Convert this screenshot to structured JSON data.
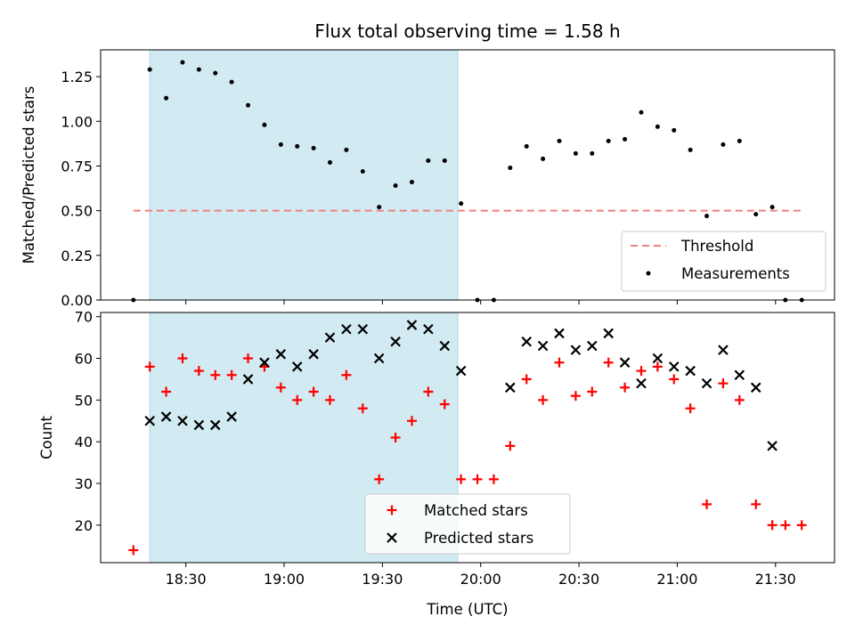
{
  "title": "Flux total observing time = 1.58 h",
  "colors": {
    "shade": "#add8e6",
    "threshold": "#f08080",
    "measurement": "#000000",
    "matched": "#ff0000",
    "predicted": "#000000"
  },
  "chart_data": [
    {
      "type": "scatter",
      "ylabel": "Matched/Predicted stars",
      "ylim": [
        0,
        1.4
      ],
      "yticks": [
        0.0,
        0.25,
        0.5,
        0.75,
        1.0,
        1.25
      ],
      "ytick_labels": [
        "0.00",
        "0.25",
        "0.50",
        "0.75",
        "1.00",
        "1.25"
      ],
      "shaded_span": [
        "18:19",
        "19:53"
      ],
      "threshold": {
        "name": "Threshold",
        "value": 0.5,
        "x": [
          "18:14",
          "21:38"
        ]
      },
      "series": [
        {
          "name": "Measurements",
          "x": [
            "18:14",
            "18:19",
            "18:24",
            "18:29",
            "18:34",
            "18:39",
            "18:44",
            "18:49",
            "18:54",
            "18:59",
            "19:04",
            "19:09",
            "19:14",
            "19:19",
            "19:24",
            "19:29",
            "19:34",
            "19:39",
            "19:44",
            "19:49",
            "19:54",
            "19:59",
            "20:04",
            "20:09",
            "20:14",
            "20:19",
            "20:24",
            "20:29",
            "20:34",
            "20:39",
            "20:44",
            "20:49",
            "20:54",
            "20:59",
            "21:04",
            "21:09",
            "21:14",
            "21:19",
            "21:24",
            "21:29",
            "21:33",
            "21:38"
          ],
          "y": [
            0.0,
            1.29,
            1.13,
            1.33,
            1.29,
            1.27,
            1.22,
            1.09,
            0.98,
            0.87,
            0.86,
            0.85,
            0.77,
            0.84,
            0.72,
            0.52,
            0.64,
            0.66,
            0.78,
            0.78,
            0.54,
            0.0,
            0.0,
            0.74,
            0.86,
            0.79,
            0.89,
            0.82,
            0.82,
            0.89,
            0.9,
            1.05,
            0.97,
            0.95,
            0.84,
            0.47,
            0.87,
            0.89,
            0.48,
            0.52,
            0.0,
            0.0
          ]
        }
      ],
      "legend_placement": "lower-right"
    },
    {
      "type": "scatter",
      "xlabel": "Time (UTC)",
      "ylabel": "Count",
      "ylim": [
        11,
        71
      ],
      "yticks": [
        20,
        30,
        40,
        50,
        60,
        70
      ],
      "xticks": [
        "18:30",
        "19:00",
        "19:30",
        "20:00",
        "20:30",
        "21:00",
        "21:30"
      ],
      "shaded_span": [
        "18:19",
        "19:53"
      ],
      "series": [
        {
          "name": "Matched stars",
          "marker": "plus",
          "x": [
            "18:14",
            "18:19",
            "18:24",
            "18:29",
            "18:34",
            "18:39",
            "18:44",
            "18:49",
            "18:54",
            "18:59",
            "19:04",
            "19:09",
            "19:14",
            "19:19",
            "19:24",
            "19:29",
            "19:34",
            "19:39",
            "19:44",
            "19:49",
            "19:54",
            "19:59",
            "20:04",
            "20:09",
            "20:14",
            "20:19",
            "20:24",
            "20:29",
            "20:34",
            "20:39",
            "20:44",
            "20:49",
            "20:54",
            "20:59",
            "21:04",
            "21:09",
            "21:14",
            "21:19",
            "21:24",
            "21:29",
            "21:33",
            "21:38"
          ],
          "y": [
            14,
            58,
            52,
            60,
            57,
            56,
            56,
            60,
            58,
            53,
            50,
            52,
            50,
            56,
            48,
            31,
            41,
            45,
            52,
            49,
            31,
            31,
            31,
            39,
            55,
            50,
            59,
            51,
            52,
            59,
            53,
            57,
            58,
            55,
            48,
            25,
            54,
            50,
            25,
            20,
            20,
            20
          ]
        },
        {
          "name": "Predicted stars",
          "marker": "x",
          "x": [
            "18:19",
            "18:24",
            "18:29",
            "18:34",
            "18:39",
            "18:44",
            "18:49",
            "18:54",
            "18:59",
            "19:04",
            "19:09",
            "19:14",
            "19:19",
            "19:24",
            "19:29",
            "19:34",
            "19:39",
            "19:44",
            "19:49",
            "19:54",
            "20:09",
            "20:14",
            "20:19",
            "20:24",
            "20:29",
            "20:34",
            "20:39",
            "20:44",
            "20:49",
            "20:54",
            "20:59",
            "21:04",
            "21:09",
            "21:14",
            "21:19",
            "21:24",
            "21:29"
          ],
          "y": [
            45,
            46,
            45,
            44,
            44,
            46,
            55,
            59,
            61,
            58,
            61,
            65,
            67,
            67,
            60,
            64,
            68,
            67,
            63,
            57,
            53,
            64,
            63,
            66,
            62,
            63,
            66,
            59,
            54,
            60,
            58,
            57,
            54,
            62,
            56,
            53,
            39
          ]
        }
      ],
      "legend_placement": "lower-center"
    }
  ]
}
